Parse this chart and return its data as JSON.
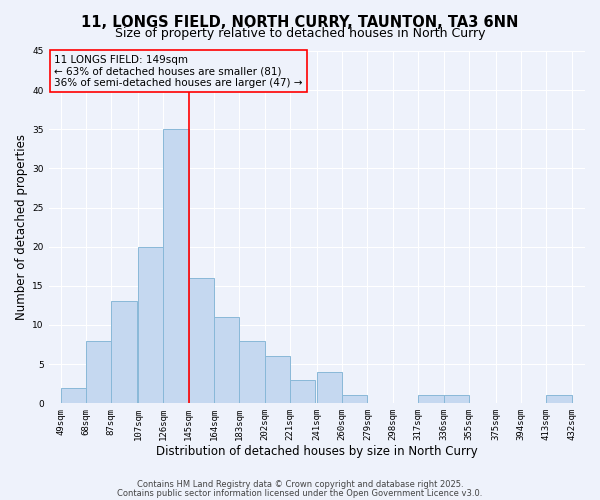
{
  "title": "11, LONGS FIELD, NORTH CURRY, TAUNTON, TA3 6NN",
  "subtitle": "Size of property relative to detached houses in North Curry",
  "xlabel": "Distribution of detached houses by size in North Curry",
  "ylabel": "Number of detached properties",
  "bar_color": "#c5d8f0",
  "bar_edge_color": "#89b8d8",
  "vline_color": "red",
  "annotation_title": "11 LONGS FIELD: 149sqm",
  "annotation_line1": "← 63% of detached houses are smaller (81)",
  "annotation_line2": "36% of semi-detached houses are larger (47) →",
  "bins_left": [
    49,
    68,
    87,
    107,
    126,
    145,
    164,
    183,
    202,
    221,
    241,
    260,
    279,
    298,
    317,
    336,
    355,
    375,
    394,
    413
  ],
  "bin_width": 19,
  "counts": [
    2,
    8,
    13,
    20,
    35,
    16,
    11,
    8,
    6,
    3,
    4,
    1,
    0,
    0,
    1,
    1,
    0,
    0,
    0,
    1
  ],
  "vline_x": 145,
  "xlim_left": 40,
  "xlim_right": 442,
  "ylim": [
    0,
    45
  ],
  "yticks": [
    0,
    5,
    10,
    15,
    20,
    25,
    30,
    35,
    40,
    45
  ],
  "xtick_labels": [
    "49sqm",
    "68sqm",
    "87sqm",
    "107sqm",
    "126sqm",
    "145sqm",
    "164sqm",
    "183sqm",
    "202sqm",
    "221sqm",
    "241sqm",
    "260sqm",
    "279sqm",
    "298sqm",
    "317sqm",
    "336sqm",
    "355sqm",
    "375sqm",
    "394sqm",
    "413sqm",
    "432sqm"
  ],
  "xtick_positions": [
    49,
    68,
    87,
    107,
    126,
    145,
    164,
    183,
    202,
    221,
    241,
    260,
    279,
    298,
    317,
    336,
    355,
    375,
    394,
    413,
    432
  ],
  "footer_line1": "Contains HM Land Registry data © Crown copyright and database right 2025.",
  "footer_line2": "Contains public sector information licensed under the Open Government Licence v3.0.",
  "background_color": "#eef2fb",
  "grid_color": "#ffffff",
  "title_fontsize": 10.5,
  "subtitle_fontsize": 9,
  "axis_label_fontsize": 8.5,
  "tick_fontsize": 6.5,
  "footer_fontsize": 6,
  "annotation_fontsize": 7.5
}
